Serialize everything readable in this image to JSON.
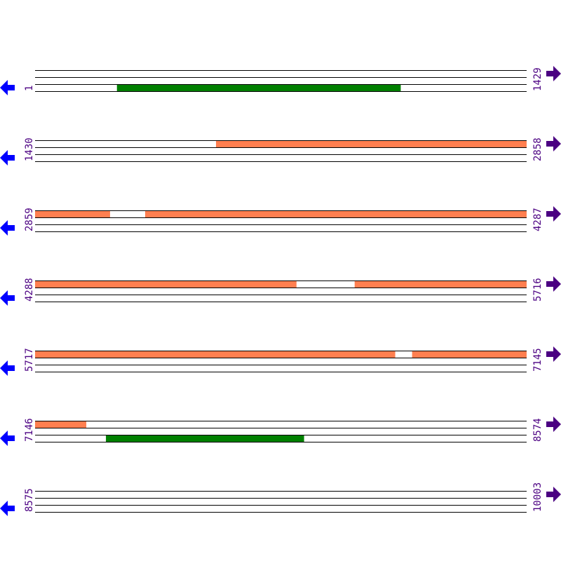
{
  "colors": {
    "orf_forward": "#ff7f50",
    "orf_reverse": "#008000",
    "line": "#000000",
    "left_arrow": "#0000ff",
    "right_arrow": "#4b0082",
    "label": "#4b0082"
  },
  "row_length_bp": 1429,
  "rows": [
    {
      "start": "1",
      "end": "1429"
    },
    {
      "start": "1430",
      "end": "2858"
    },
    {
      "start": "2859",
      "end": "4287"
    },
    {
      "start": "4288",
      "end": "5716"
    },
    {
      "start": "5717",
      "end": "7145"
    },
    {
      "start": "7146",
      "end": "8574"
    },
    {
      "start": "8575",
      "end": "10003"
    }
  ],
  "features": [
    {
      "row": 0,
      "lane": 2,
      "start": 239,
      "end": 1064,
      "type": "orf_reverse"
    },
    {
      "row": 1,
      "lane": 0,
      "start": 1956,
      "end": 2858,
      "type": "orf_forward"
    },
    {
      "row": 2,
      "lane": 0,
      "start": 2859,
      "end": 3077,
      "type": "orf_forward"
    },
    {
      "row": 2,
      "lane": 0,
      "start": 3179,
      "end": 4287,
      "type": "orf_forward"
    },
    {
      "row": 3,
      "lane": 0,
      "start": 4288,
      "end": 5048,
      "type": "orf_forward"
    },
    {
      "row": 3,
      "lane": 0,
      "start": 5217,
      "end": 5716,
      "type": "orf_forward"
    },
    {
      "row": 4,
      "lane": 0,
      "start": 5717,
      "end": 6764,
      "type": "orf_forward"
    },
    {
      "row": 4,
      "lane": 0,
      "start": 6813,
      "end": 7145,
      "type": "orf_forward"
    },
    {
      "row": 5,
      "lane": 0,
      "start": 7146,
      "end": 7295,
      "type": "orf_forward"
    },
    {
      "row": 5,
      "lane": 2,
      "start": 7352,
      "end": 7928,
      "type": "orf_reverse"
    }
  ]
}
